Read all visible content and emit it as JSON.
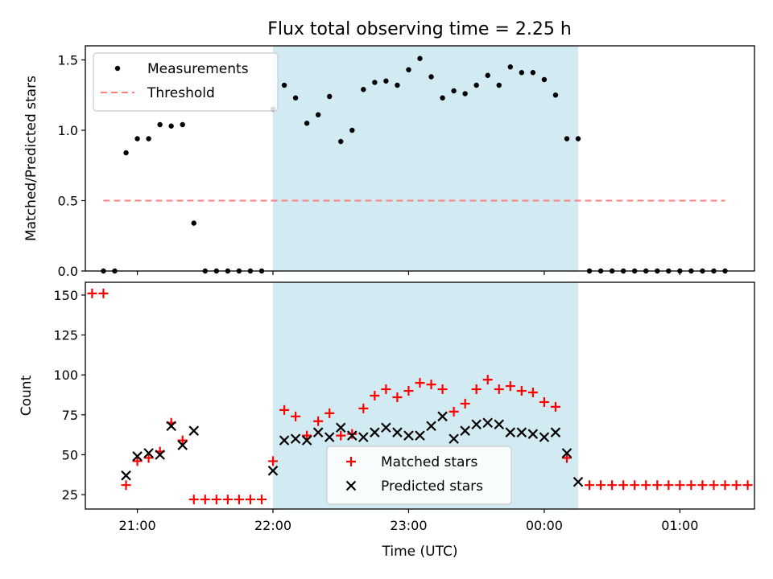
{
  "title": "Flux total observing time = 2.25 h",
  "colors": {
    "window": "#add8e6",
    "measurement": "#000000",
    "threshold": "#ff7f7f",
    "matched": "#ff0000",
    "predicted": "#000000"
  },
  "chart_data": [
    {
      "type": "scatter",
      "ylabel": "Matched/Predicted stars",
      "xlim": [
        "20:37",
        "01:33"
      ],
      "ylim": [
        0,
        1.6
      ],
      "yticks": [
        0.0,
        0.5,
        1.0,
        1.5
      ],
      "ytick_labels": [
        "0.0",
        "0.5",
        "1.0",
        "1.5"
      ],
      "legend": {
        "placement": "top-left",
        "entries": [
          "Measurements",
          "Threshold"
        ]
      },
      "shaded_window": [
        "22:00",
        "00:15"
      ],
      "threshold": {
        "name": "Threshold",
        "y": 0.5,
        "x_range": [
          "20:45",
          "01:20"
        ]
      },
      "series": [
        {
          "name": "Measurements",
          "marker": "dot",
          "x": [
            "20:45",
            "20:50",
            "20:55",
            "21:00",
            "21:05",
            "21:10",
            "21:15",
            "21:20",
            "21:25",
            "21:30",
            "21:35",
            "21:40",
            "21:45",
            "21:50",
            "21:55",
            "22:00",
            "22:05",
            "22:10",
            "22:15",
            "22:20",
            "22:25",
            "22:30",
            "22:35",
            "22:40",
            "22:45",
            "22:50",
            "22:55",
            "23:00",
            "23:05",
            "23:10",
            "23:15",
            "23:20",
            "23:25",
            "23:30",
            "23:35",
            "23:40",
            "23:45",
            "23:50",
            "23:55",
            "00:00",
            "00:05",
            "00:10",
            "00:15",
            "00:20",
            "00:25",
            "00:30",
            "00:35",
            "00:40",
            "00:45",
            "00:50",
            "00:55",
            "01:00",
            "01:05",
            "01:10",
            "01:15",
            "01:20"
          ],
          "values": [
            0,
            0,
            0.84,
            0.94,
            0.94,
            1.04,
            1.03,
            1.04,
            0.34,
            0,
            0,
            0,
            0,
            0,
            0,
            1.15,
            1.32,
            1.23,
            1.05,
            1.11,
            1.24,
            0.92,
            1.0,
            1.29,
            1.34,
            1.35,
            1.32,
            1.43,
            1.51,
            1.38,
            1.23,
            1.28,
            1.26,
            1.32,
            1.39,
            1.32,
            1.45,
            1.41,
            1.41,
            1.36,
            1.25,
            0.94,
            0.94,
            0,
            0,
            0,
            0,
            0,
            0,
            0,
            0,
            0,
            0,
            0,
            0,
            0
          ]
        }
      ]
    },
    {
      "type": "scatter",
      "ylabel": "Count",
      "xlabel": "Time (UTC)",
      "xticks": [
        "21:00",
        "22:00",
        "23:00",
        "00:00",
        "01:00"
      ],
      "xlim": [
        "20:37",
        "01:33"
      ],
      "ylim": [
        16,
        158
      ],
      "yticks": [
        25,
        50,
        75,
        100,
        125,
        150
      ],
      "legend": {
        "placement": "bottom-center",
        "entries": [
          "Matched stars",
          "Predicted stars"
        ]
      },
      "shaded_window": [
        "22:00",
        "00:15"
      ],
      "series": [
        {
          "name": "Matched stars",
          "marker": "plus",
          "x": [
            "20:40",
            "20:45",
            "20:55",
            "21:00",
            "21:05",
            "21:10",
            "21:15",
            "21:20",
            "21:25",
            "21:30",
            "21:35",
            "21:40",
            "21:45",
            "21:50",
            "21:55",
            "22:00",
            "22:05",
            "22:10",
            "22:15",
            "22:20",
            "22:25",
            "22:30",
            "22:35",
            "22:40",
            "22:45",
            "22:50",
            "22:55",
            "23:00",
            "23:05",
            "23:10",
            "23:15",
            "23:20",
            "23:25",
            "23:30",
            "23:35",
            "23:40",
            "23:45",
            "23:50",
            "23:55",
            "00:00",
            "00:05",
            "00:10",
            "00:20",
            "00:25",
            "00:30",
            "00:35",
            "00:40",
            "00:45",
            "00:50",
            "00:55",
            "01:00",
            "01:05",
            "01:10",
            "01:15",
            "01:20",
            "01:25",
            "01:30"
          ],
          "values": [
            151,
            151,
            31,
            46,
            48,
            52,
            70,
            59,
            22,
            22,
            22,
            22,
            22,
            22,
            22,
            46,
            78,
            74,
            62,
            71,
            76,
            62,
            63,
            79,
            87,
            91,
            86,
            90,
            95,
            94,
            91,
            77,
            82,
            91,
            97,
            91,
            93,
            90,
            89,
            83,
            80,
            48,
            31,
            31,
            31,
            31,
            31,
            31,
            31,
            31,
            31,
            31,
            31,
            31,
            31,
            31,
            31
          ]
        },
        {
          "name": "Predicted stars",
          "marker": "x",
          "x": [
            "20:55",
            "21:00",
            "21:05",
            "21:10",
            "21:15",
            "21:20",
            "21:25",
            "22:00",
            "22:05",
            "22:10",
            "22:15",
            "22:20",
            "22:25",
            "22:30",
            "22:35",
            "22:40",
            "22:45",
            "22:50",
            "22:55",
            "23:00",
            "23:05",
            "23:10",
            "23:15",
            "23:20",
            "23:25",
            "23:30",
            "23:35",
            "23:40",
            "23:45",
            "23:50",
            "23:55",
            "00:00",
            "00:05",
            "00:10",
            "00:15"
          ],
          "values": [
            37,
            49,
            51,
            50,
            68,
            56,
            65,
            40,
            59,
            60,
            59,
            64,
            61,
            67,
            62,
            61,
            64,
            67,
            64,
            62,
            62,
            68,
            74,
            60,
            65,
            69,
            70,
            69,
            64,
            64,
            63,
            61,
            64,
            51,
            33
          ]
        }
      ]
    }
  ]
}
